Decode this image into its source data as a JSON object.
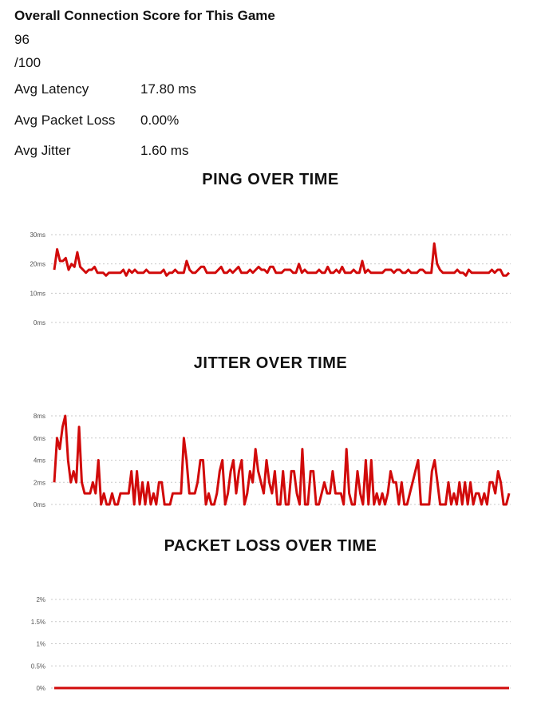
{
  "summary": {
    "title": "Overall Connection Score for This Game",
    "score": "96",
    "score_max": "/100",
    "stats": [
      {
        "label": "Avg Latency",
        "value": "17.80 ms"
      },
      {
        "label": "Avg Packet Loss",
        "value": "0.00%"
      },
      {
        "label": "Avg Jitter",
        "value": "1.60 ms"
      }
    ]
  },
  "colors": {
    "series": "#d10a0a",
    "grid": "#c8c8c8"
  },
  "chart_data": [
    {
      "type": "line",
      "title": "PING OVER TIME",
      "ylim": [
        0,
        30
      ],
      "yticks": [
        {
          "v": 30,
          "label": "30ms"
        },
        {
          "v": 20,
          "label": "20ms"
        },
        {
          "v": 10,
          "label": "10ms"
        },
        {
          "v": 0,
          "label": "0ms"
        }
      ],
      "grid": true,
      "series": [
        {
          "values": [
            18,
            25,
            21,
            21,
            22,
            18,
            20,
            19,
            24,
            19,
            18,
            17,
            18,
            18,
            19,
            17,
            17,
            17,
            16,
            17,
            17,
            17,
            17,
            17,
            18,
            16,
            18,
            17,
            18,
            17,
            17,
            17,
            18,
            17,
            17,
            17,
            17,
            17,
            18,
            16,
            17,
            17,
            18,
            17,
            17,
            17,
            21,
            18,
            17,
            17,
            18,
            19,
            19,
            17,
            17,
            17,
            17,
            18,
            19,
            17,
            17,
            18,
            17,
            18,
            19,
            17,
            17,
            17,
            18,
            17,
            18,
            19,
            18,
            18,
            17,
            19,
            19,
            17,
            17,
            17,
            18,
            18,
            18,
            17,
            17,
            20,
            17,
            18,
            17,
            17,
            17,
            17,
            18,
            17,
            17,
            19,
            17,
            17,
            18,
            17,
            19,
            17,
            17,
            17,
            18,
            17,
            17,
            21,
            17,
            18,
            17,
            17,
            17,
            17,
            17,
            18,
            18,
            18,
            17,
            18,
            18,
            17,
            17,
            18,
            17,
            17,
            17,
            18,
            18,
            17,
            17,
            17,
            27,
            20,
            18,
            17,
            17,
            17,
            17,
            17,
            18,
            17,
            17,
            16,
            18,
            17,
            17,
            17,
            17,
            17,
            17,
            17,
            18,
            17,
            18,
            18,
            16,
            16,
            17
          ]
        }
      ]
    },
    {
      "type": "line",
      "title": "JITTER OVER TIME",
      "ylim": [
        0,
        8
      ],
      "yticks": [
        {
          "v": 8,
          "label": "8ms"
        },
        {
          "v": 6,
          "label": "6ms"
        },
        {
          "v": 4,
          "label": "4ms"
        },
        {
          "v": 2,
          "label": "2ms"
        },
        {
          "v": 0,
          "label": "0ms"
        }
      ],
      "grid": true,
      "series": [
        {
          "values": [
            2,
            6,
            5,
            7,
            8,
            4,
            2,
            3,
            2,
            7,
            2,
            1,
            1,
            1,
            2,
            1,
            4,
            0,
            1,
            0,
            0,
            1,
            0,
            0,
            1,
            1,
            1,
            1,
            3,
            0,
            3,
            0,
            2,
            0,
            2,
            0,
            1,
            0,
            2,
            2,
            0,
            0,
            0,
            1,
            1,
            1,
            1,
            6,
            4,
            1,
            1,
            1,
            2,
            4,
            4,
            0,
            1,
            0,
            0,
            1,
            3,
            4,
            0,
            1,
            3,
            4,
            1,
            3,
            4,
            0,
            1,
            3,
            2,
            5,
            3,
            2,
            1,
            4,
            2,
            1,
            3,
            0,
            0,
            3,
            0,
            0,
            3,
            3,
            1,
            0,
            5,
            0,
            0,
            3,
            3,
            0,
            0,
            1,
            2,
            1,
            1,
            3,
            1,
            1,
            1,
            0,
            5,
            1,
            0,
            0,
            3,
            1,
            0,
            4,
            0,
            4,
            0,
            1,
            0,
            1,
            0,
            1,
            3,
            2,
            2,
            0,
            2,
            0,
            0,
            1,
            2,
            3,
            4,
            0,
            0,
            0,
            0,
            3,
            4,
            2,
            0,
            0,
            0,
            2,
            0,
            1,
            0,
            2,
            0,
            2,
            0,
            2,
            0,
            1,
            1,
            0,
            1,
            0,
            2,
            2,
            1,
            3,
            2,
            0,
            0,
            1
          ]
        }
      ]
    },
    {
      "type": "line",
      "title": "PACKET LOSS OVER TIME",
      "ylim": [
        0,
        2
      ],
      "yticks": [
        {
          "v": 2,
          "label": "2%"
        },
        {
          "v": 1.5,
          "label": "1.5%"
        },
        {
          "v": 1,
          "label": "1%"
        },
        {
          "v": 0.5,
          "label": "0.5%"
        },
        {
          "v": 0,
          "label": "0%"
        }
      ],
      "grid": true,
      "series": [
        {
          "values": [
            0,
            0,
            0,
            0,
            0,
            0,
            0,
            0,
            0,
            0,
            0,
            0,
            0,
            0,
            0,
            0,
            0,
            0,
            0,
            0,
            0,
            0,
            0,
            0,
            0,
            0,
            0,
            0,
            0,
            0,
            0,
            0,
            0,
            0,
            0,
            0,
            0,
            0,
            0,
            0,
            0,
            0,
            0,
            0,
            0,
            0,
            0,
            0,
            0,
            0,
            0,
            0,
            0,
            0,
            0,
            0,
            0,
            0,
            0,
            0,
            0,
            0,
            0,
            0,
            0,
            0,
            0,
            0,
            0,
            0,
            0,
            0,
            0,
            0,
            0,
            0,
            0,
            0,
            0,
            0,
            0,
            0,
            0,
            0,
            0,
            0,
            0,
            0,
            0,
            0,
            0,
            0,
            0,
            0,
            0,
            0,
            0,
            0,
            0,
            0,
            0,
            0,
            0,
            0,
            0,
            0,
            0,
            0,
            0,
            0,
            0,
            0,
            0,
            0,
            0,
            0,
            0,
            0,
            0,
            0,
            0,
            0,
            0,
            0,
            0,
            0,
            0,
            0,
            0,
            0,
            0,
            0,
            0,
            0,
            0,
            0,
            0,
            0,
            0,
            0,
            0,
            0,
            0,
            0,
            0,
            0,
            0,
            0,
            0,
            0,
            0,
            0,
            0,
            0,
            0,
            0,
            0,
            0,
            0,
            0
          ]
        }
      ]
    }
  ]
}
